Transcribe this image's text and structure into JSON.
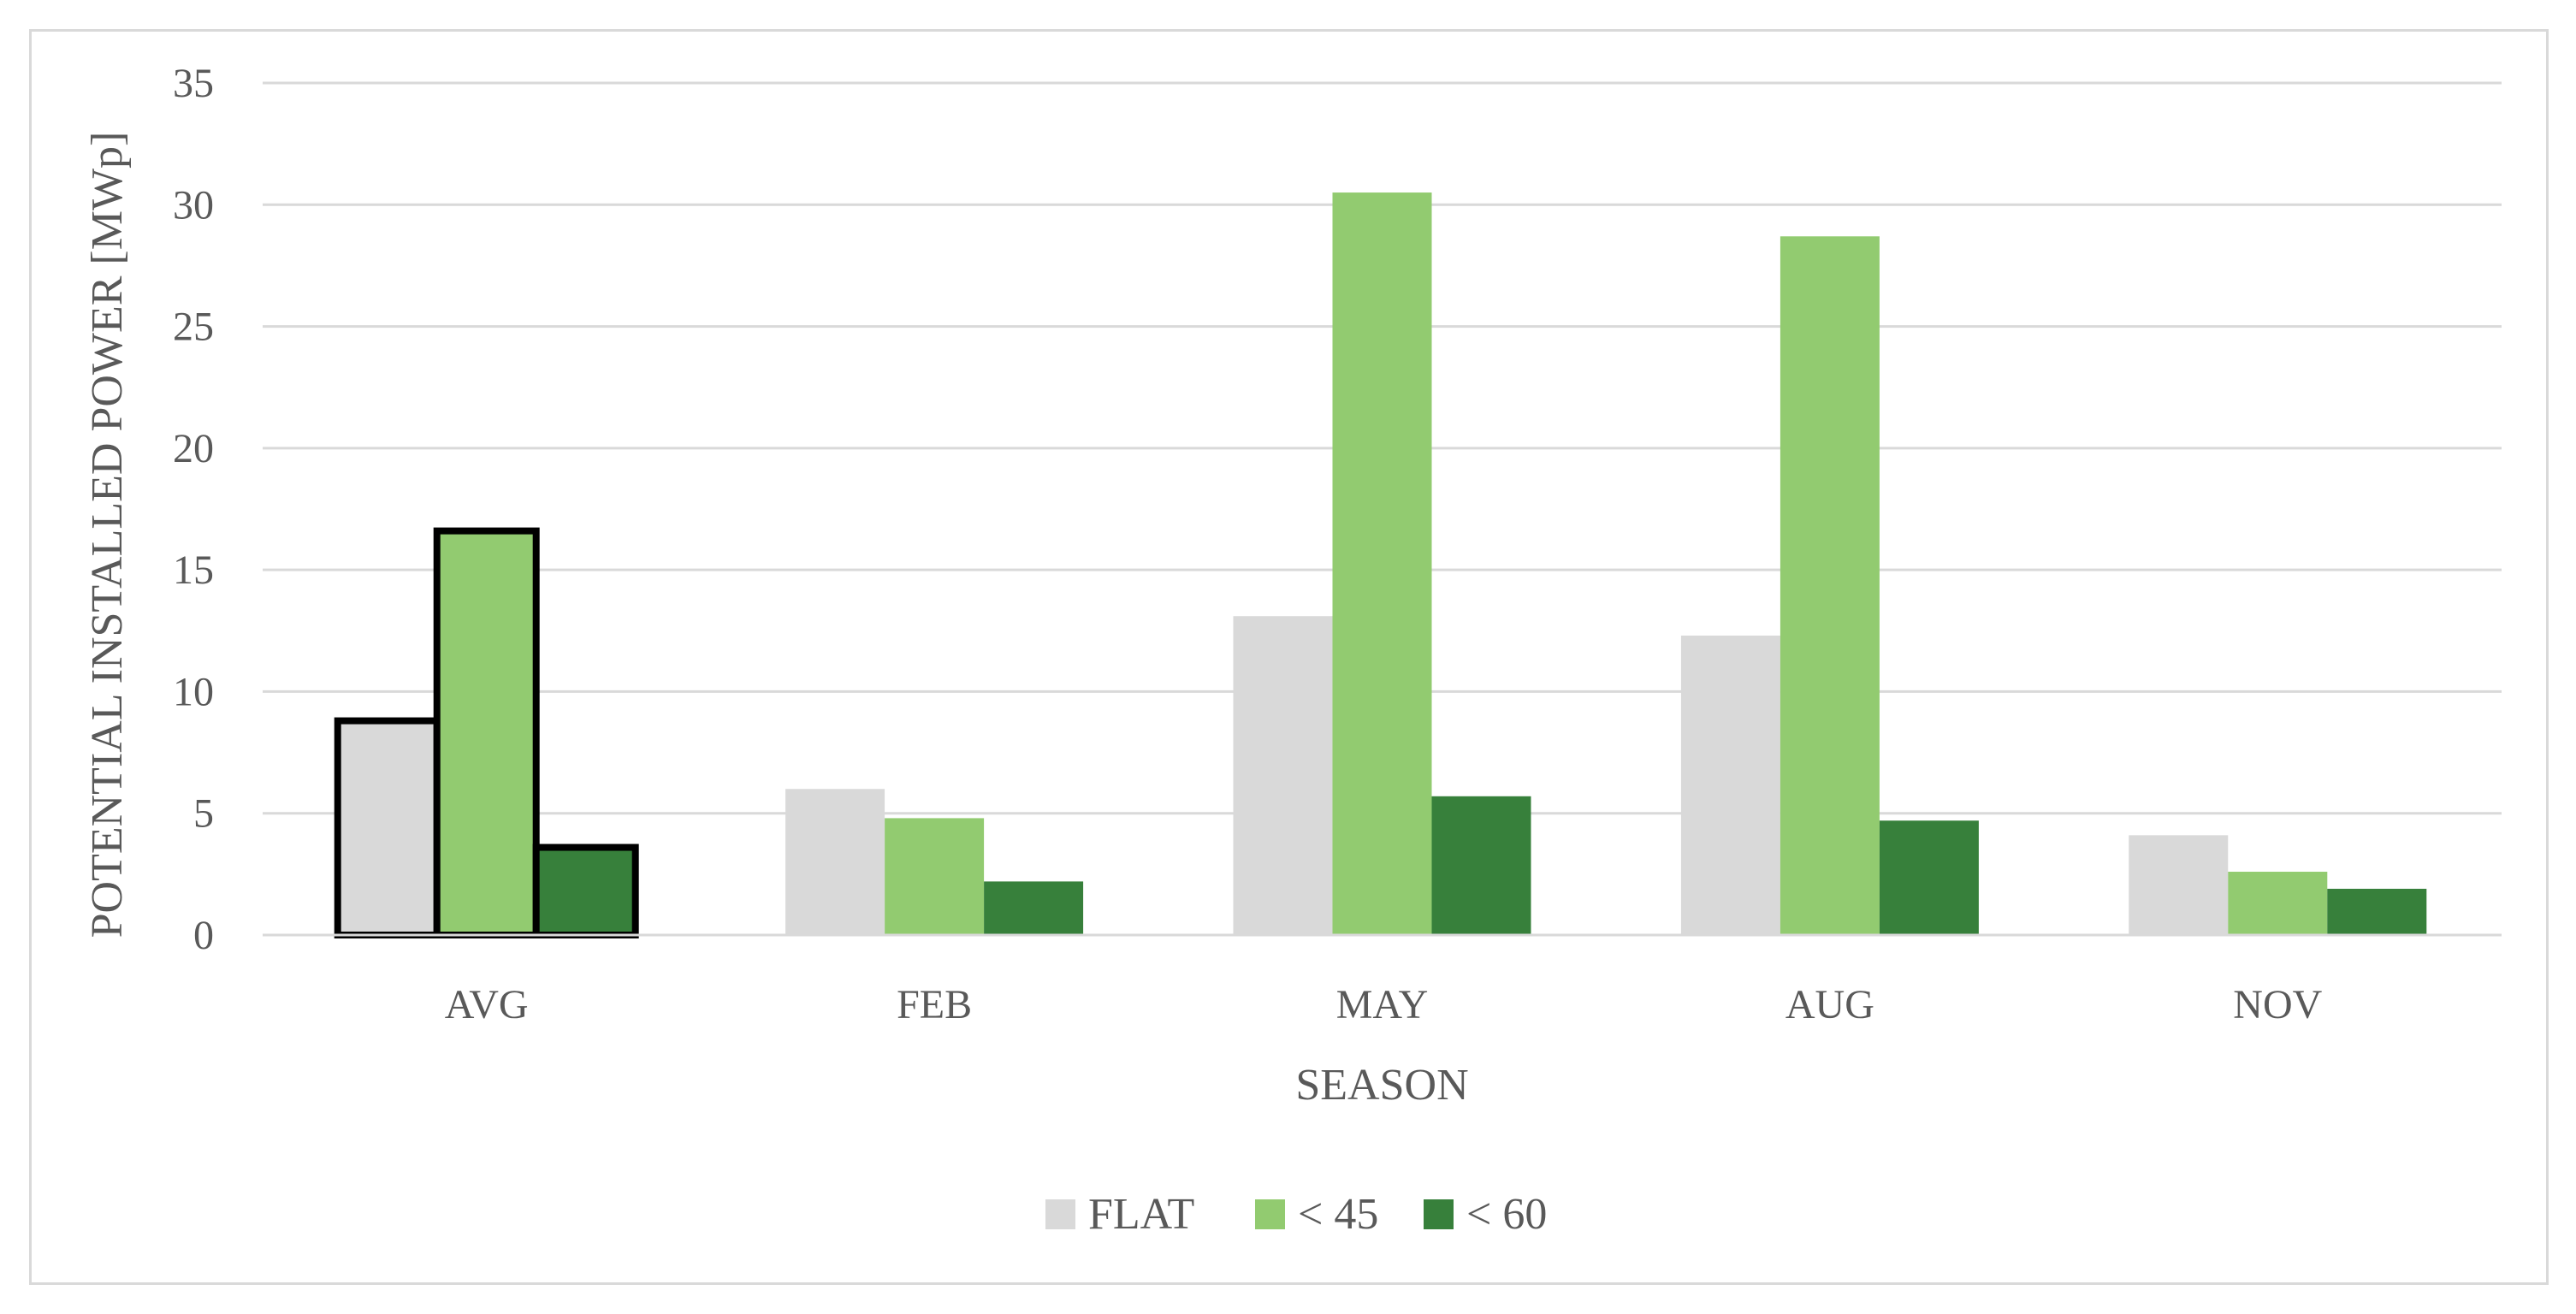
{
  "chart_data": {
    "type": "bar",
    "title": "",
    "xlabel": "SEASON",
    "ylabel": "POTENTIAL INSTALLED POWER [MWp]",
    "categories": [
      "AVG",
      "FEB",
      "MAY",
      "AUG",
      "NOV"
    ],
    "ylim": [
      0,
      35
    ],
    "yticks": [
      0,
      5,
      10,
      15,
      20,
      25,
      30,
      35
    ],
    "grid": true,
    "legend_position": "bottom",
    "highlighted_category": "AVG",
    "series": [
      {
        "name": "FLAT",
        "color": "#d9d9d9",
        "values": [
          8.8,
          6.0,
          13.1,
          12.3,
          4.1
        ]
      },
      {
        "name": "< 45",
        "color": "#92cb70",
        "values": [
          16.6,
          4.8,
          30.5,
          28.7,
          2.6
        ]
      },
      {
        "name": "< 60",
        "color": "#37803b",
        "values": [
          3.6,
          2.2,
          5.7,
          4.7,
          1.9
        ]
      }
    ]
  }
}
